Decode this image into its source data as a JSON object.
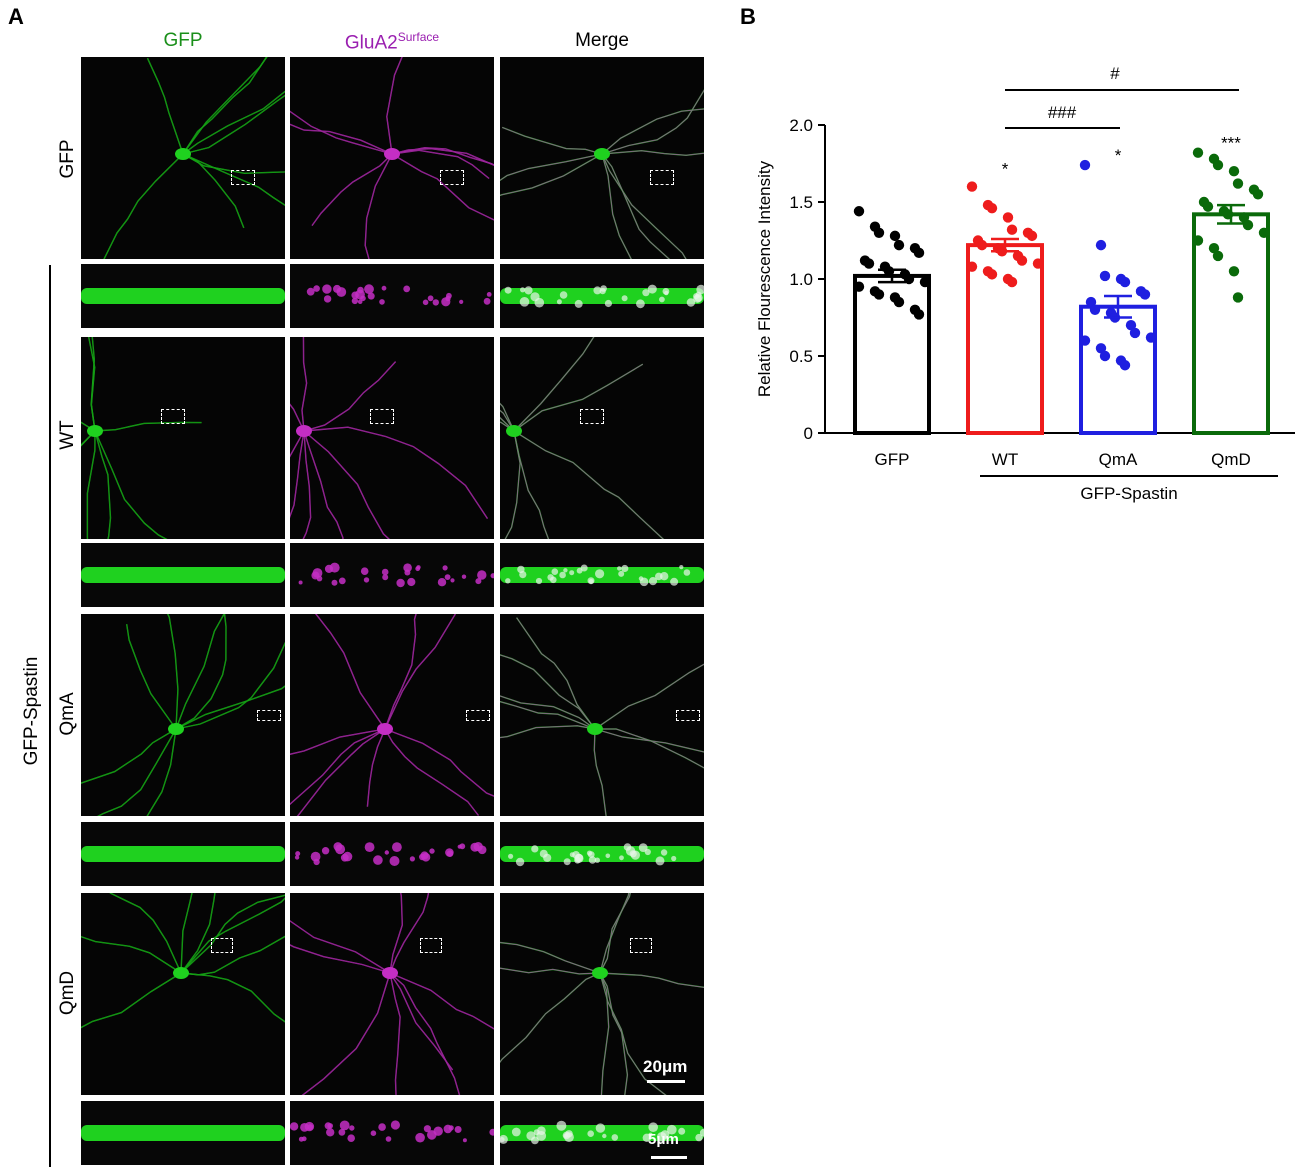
{
  "figure": {
    "panel_a_letter": "A",
    "panel_b_letter": "B",
    "column_headers": {
      "gfp": "GFP",
      "glua2": "GluA2",
      "glua2_sup": "Surface",
      "merge": "Merge"
    },
    "row_labels": [
      "GFP",
      "WT",
      "QmA",
      "QmD"
    ],
    "group_label": "GFP-Spastin",
    "scale_bars": {
      "large": "20μm",
      "small": "5μm"
    },
    "colors": {
      "gfp": "#1fd11f",
      "glua2": "#c42ec4",
      "merge_mix": "#e8f5e8"
    }
  },
  "chart_data": {
    "type": "bar",
    "categories": [
      "GFP",
      "WT",
      "QmA",
      "QmD"
    ],
    "group_label": "GFP-Spastin",
    "ylabel": "Relative Flourescence Intensity",
    "ylim": [
      0,
      2.0
    ],
    "yticks": [
      "0",
      "0.5",
      "1.0",
      "1.5",
      "2.0"
    ],
    "bar_colors": [
      "#000000",
      "#ee1c1c",
      "#1f1fe0",
      "#0a6a0a"
    ],
    "means": [
      1.02,
      1.22,
      0.82,
      1.42
    ],
    "sem": [
      0.04,
      0.04,
      0.07,
      0.06
    ],
    "points": [
      [
        1.44,
        1.34,
        1.3,
        1.28,
        1.22,
        1.2,
        1.17,
        1.12,
        1.1,
        1.08,
        1.05,
        1.03,
        1.0,
        0.98,
        0.95,
        0.92,
        0.9,
        0.88,
        0.85,
        0.8,
        0.77
      ],
      [
        1.6,
        1.48,
        1.46,
        1.4,
        1.32,
        1.3,
        1.28,
        1.25,
        1.22,
        1.2,
        1.18,
        1.15,
        1.12,
        1.1,
        1.08,
        1.05,
        1.03,
        1.0,
        0.98
      ],
      [
        1.74,
        1.22,
        1.02,
        1.0,
        0.98,
        0.92,
        0.9,
        0.85,
        0.8,
        0.78,
        0.75,
        0.7,
        0.65,
        0.62,
        0.6,
        0.55,
        0.5,
        0.47,
        0.44
      ],
      [
        1.82,
        1.78,
        1.74,
        1.7,
        1.62,
        1.58,
        1.55,
        1.5,
        1.47,
        1.44,
        1.42,
        1.4,
        1.35,
        1.3,
        1.25,
        1.2,
        1.15,
        1.05,
        0.88
      ]
    ],
    "significance_vs_gfp": [
      "",
      "*",
      "*",
      "***"
    ],
    "comparisons": [
      {
        "from": "WT",
        "to": "QmA",
        "label": "###"
      },
      {
        "from": "WT",
        "to": "QmD",
        "label": "#"
      }
    ]
  }
}
